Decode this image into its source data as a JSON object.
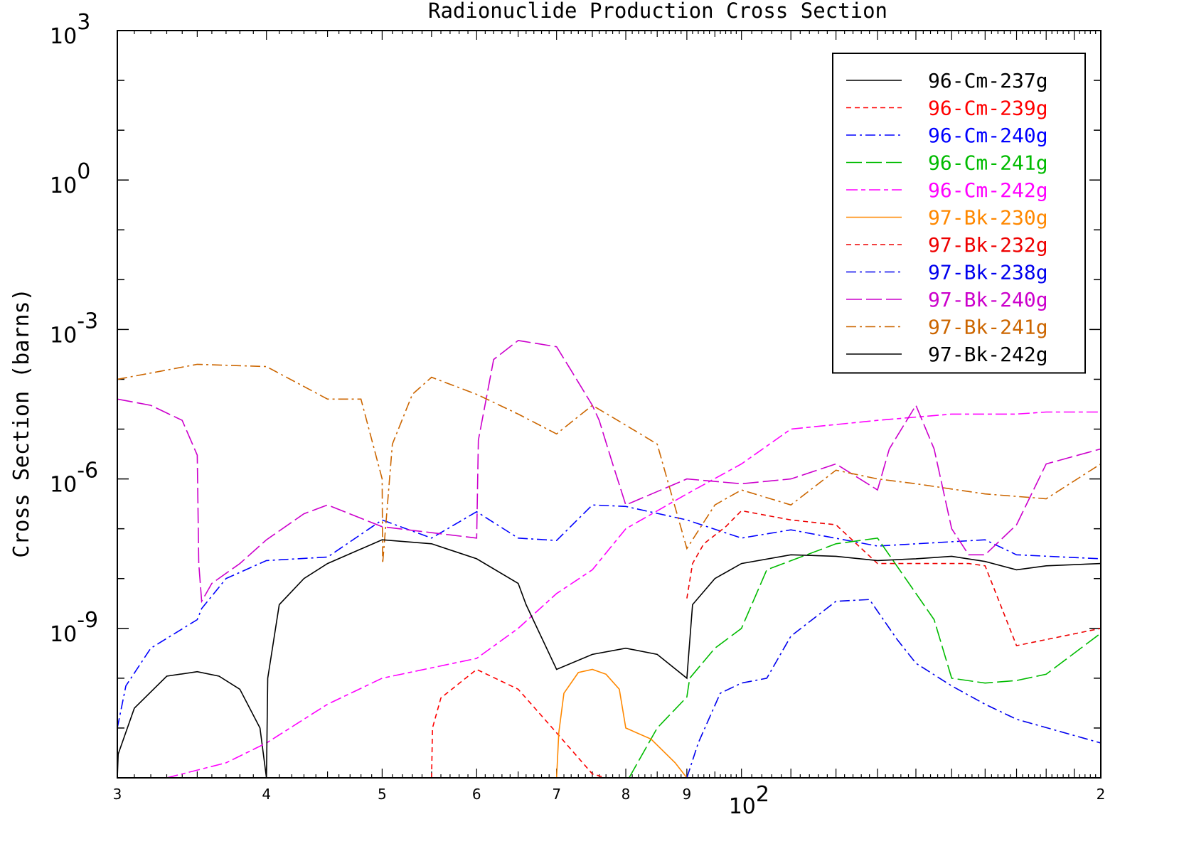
{
  "chart_data": {
    "type": "line",
    "title": "Radionuclide Production Cross Section",
    "xlabel": "",
    "ylabel": "Cross Section (barns)",
    "xscale": "log",
    "yscale": "log",
    "xlim": [
      30,
      200
    ],
    "ylim": [
      1e-12,
      1000
    ],
    "x_tick_labels": [
      {
        "x": 30,
        "label": "3"
      },
      {
        "x": 40,
        "label": "4"
      },
      {
        "x": 50,
        "label": "5"
      },
      {
        "x": 60,
        "label": "6"
      },
      {
        "x": 70,
        "label": "7"
      },
      {
        "x": 80,
        "label": "8"
      },
      {
        "x": 90,
        "label": "9"
      },
      {
        "x": 100,
        "label": "10",
        "sup": "2"
      },
      {
        "x": 200,
        "label": "2"
      }
    ],
    "y_tick_labels": [
      {
        "y": 1000,
        "label": "10",
        "sup": "3"
      },
      {
        "y": 1,
        "label": "10",
        "sup": "0"
      },
      {
        "y": 0.001,
        "label": "10",
        "sup": "-3"
      },
      {
        "y": 1e-06,
        "label": "10",
        "sup": "-6"
      },
      {
        "y": 1e-09,
        "label": "10",
        "sup": "-9"
      }
    ],
    "grid": false,
    "legend_position": "top-right",
    "series": [
      {
        "name": "96-Cm-237g",
        "color": "#000000",
        "dash": "solid",
        "points": [
          [
            30,
            1e-12
          ],
          [
            30.05,
            3e-12
          ],
          [
            31,
            2.5e-11
          ],
          [
            33,
            1.1e-10
          ],
          [
            35,
            1.35e-10
          ],
          [
            36.5,
            1.1e-10
          ],
          [
            38,
            6e-11
          ],
          [
            39.5,
            1e-11
          ],
          [
            40,
            1e-12
          ]
        ]
      },
      {
        "name": "96-Cm-239g",
        "color": "#ff0000",
        "dash": "short",
        "points": [
          [
            55,
            1e-12
          ],
          [
            55.1,
            1e-11
          ],
          [
            56,
            4e-11
          ],
          [
            60,
            1.5e-10
          ],
          [
            65,
            6e-11
          ],
          [
            70,
            8e-12
          ],
          [
            75,
            1.2e-12
          ],
          [
            77,
            1e-12
          ]
        ]
      },
      {
        "name": "96-Cm-240g",
        "color": "#0000ff",
        "dash": "dashdot",
        "points": [
          [
            30,
            1e-11
          ],
          [
            30.5,
            7e-11
          ],
          [
            32,
            4e-10
          ],
          [
            35,
            1.5e-09
          ],
          [
            35.3,
            2.5e-09
          ],
          [
            37,
            1e-08
          ],
          [
            40,
            2.3e-08
          ],
          [
            45,
            2.7e-08
          ],
          [
            50,
            1.5e-07
          ],
          [
            55,
            6.5e-08
          ],
          [
            60,
            2.2e-07
          ],
          [
            65,
            6.5e-08
          ],
          [
            70,
            5.8e-08
          ],
          [
            75,
            3e-07
          ],
          [
            80,
            2.8e-07
          ],
          [
            90,
            1.5e-07
          ],
          [
            100,
            6.5e-08
          ],
          [
            110,
            9.5e-08
          ],
          [
            130,
            4.5e-08
          ],
          [
            160,
            6e-08
          ],
          [
            170,
            3e-08
          ],
          [
            200,
            2.5e-08
          ]
        ]
      },
      {
        "name": "96-Cm-241g",
        "color": "#00bb00",
        "dash": "longdash",
        "points": [
          [
            80.5,
            1e-12
          ],
          [
            85,
            1e-11
          ],
          [
            90,
            4.2e-11
          ],
          [
            90.5,
            1e-10
          ],
          [
            95,
            4e-10
          ],
          [
            100,
            1e-09
          ],
          [
            105,
            1.5e-08
          ],
          [
            120,
            5e-08
          ],
          [
            130,
            6.5e-08
          ],
          [
            145,
            1.5e-09
          ],
          [
            150,
            1e-10
          ],
          [
            160,
            8e-11
          ],
          [
            170,
            9e-11
          ],
          [
            180,
            1.2e-10
          ],
          [
            200,
            8e-10
          ]
        ]
      },
      {
        "name": "96-Cm-242g",
        "color": "#ff00ff",
        "dash": "longshort",
        "points": [
          [
            33,
            1e-12
          ],
          [
            37,
            2e-12
          ],
          [
            40,
            5e-12
          ],
          [
            45,
            3e-11
          ],
          [
            50,
            1e-10
          ],
          [
            60,
            2.5e-10
          ],
          [
            65,
            1e-09
          ],
          [
            70,
            5e-09
          ],
          [
            75,
            1.5e-08
          ],
          [
            80,
            1e-07
          ],
          [
            90,
            5e-07
          ],
          [
            100,
            2e-06
          ],
          [
            110,
            1e-05
          ],
          [
            130,
            1.5e-05
          ],
          [
            150,
            2e-05
          ],
          [
            170,
            2e-05
          ],
          [
            180,
            2.2e-05
          ],
          [
            200,
            2.2e-05
          ]
        ]
      },
      {
        "name": "97-Bk-230g",
        "color": "#ff8800",
        "dash": "solid",
        "points": [
          [
            70,
            1e-12
          ],
          [
            70.3,
            8e-12
          ],
          [
            71,
            5e-11
          ],
          [
            73,
            1.3e-10
          ],
          [
            75,
            1.5e-10
          ],
          [
            77,
            1.2e-10
          ],
          [
            79,
            6e-11
          ],
          [
            80,
            1e-11
          ],
          [
            84,
            6e-12
          ],
          [
            88,
            2e-12
          ],
          [
            90,
            1e-12
          ]
        ]
      },
      {
        "name": "97-Bk-232g",
        "color": "#ee0000",
        "dash": "short",
        "points": [
          [
            90,
            4e-09
          ],
          [
            91,
            2e-08
          ],
          [
            93,
            5e-08
          ],
          [
            97,
            1.1e-07
          ],
          [
            100,
            2.3e-07
          ],
          [
            110,
            1.5e-07
          ],
          [
            120,
            1.2e-07
          ],
          [
            130,
            2e-08
          ],
          [
            140,
            2e-08
          ],
          [
            155,
            2e-08
          ],
          [
            160,
            1.8e-08
          ],
          [
            170,
            4.5e-10
          ],
          [
            200,
            1e-09
          ]
        ]
      },
      {
        "name": "97-Bk-238g",
        "color": "#0000ee",
        "dash": "dashdot",
        "points": [
          [
            90,
            1e-12
          ],
          [
            92,
            5e-12
          ],
          [
            96,
            5e-11
          ],
          [
            100,
            8e-11
          ],
          [
            105,
            1e-10
          ],
          [
            110,
            7e-10
          ],
          [
            120,
            3.5e-09
          ],
          [
            128,
            3.8e-09
          ],
          [
            135,
            6e-10
          ],
          [
            140,
            2e-10
          ],
          [
            150,
            7e-11
          ],
          [
            160,
            3e-11
          ],
          [
            170,
            1.5e-11
          ],
          [
            200,
            5e-12
          ]
        ]
      },
      {
        "name": "97-Bk-240g",
        "color": "#cc00cc",
        "dash": "longdash",
        "points": [
          [
            30,
            4e-05
          ],
          [
            32,
            3e-05
          ],
          [
            34,
            1.5e-05
          ],
          [
            35,
            3e-06
          ],
          [
            35.1,
            2e-08
          ],
          [
            35.3,
            3.5e-09
          ],
          [
            36,
            8e-09
          ],
          [
            38,
            2e-08
          ],
          [
            40,
            6e-08
          ],
          [
            43,
            2e-07
          ],
          [
            45,
            3e-07
          ],
          [
            50,
            1.1e-07
          ],
          [
            60,
            6.5e-08
          ],
          [
            60.2,
            6e-06
          ],
          [
            62,
            0.00025
          ],
          [
            65,
            0.0006
          ],
          [
            70,
            0.00045
          ],
          [
            72,
            0.00015
          ],
          [
            75,
            3e-05
          ],
          [
            76,
            1.5e-05
          ],
          [
            78,
            2e-06
          ],
          [
            80,
            3e-07
          ],
          [
            90,
            1e-06
          ],
          [
            100,
            8e-07
          ],
          [
            110,
            1e-06
          ],
          [
            120,
            2e-06
          ],
          [
            130,
            6e-07
          ],
          [
            133,
            4e-06
          ],
          [
            140,
            3e-05
          ],
          [
            145,
            4e-06
          ],
          [
            150,
            1e-07
          ],
          [
            155,
            3e-08
          ],
          [
            160,
            3e-08
          ],
          [
            170,
            1.2e-07
          ],
          [
            180,
            2e-06
          ],
          [
            200,
            4e-06
          ]
        ]
      },
      {
        "name": "97-Bk-241g",
        "color": "#cc6600",
        "dash": "dashdot",
        "points": [
          [
            30,
            0.0001
          ],
          [
            35,
            0.0002
          ],
          [
            40,
            0.00018
          ],
          [
            45,
            4e-05
          ],
          [
            48,
            4e-05
          ],
          [
            50,
            1e-06
          ],
          [
            50.05,
            2e-08
          ],
          [
            51,
            5e-06
          ],
          [
            53,
            5e-05
          ],
          [
            55,
            0.00011
          ],
          [
            60,
            5e-05
          ],
          [
            65,
            2e-05
          ],
          [
            70,
            8e-06
          ],
          [
            75,
            3e-05
          ],
          [
            80,
            1.2e-05
          ],
          [
            85,
            5e-06
          ],
          [
            90,
            4e-08
          ],
          [
            95,
            3e-07
          ],
          [
            100,
            6e-07
          ],
          [
            110,
            3e-07
          ],
          [
            120,
            1.5e-06
          ],
          [
            130,
            1e-06
          ],
          [
            140,
            8e-07
          ],
          [
            160,
            5e-07
          ],
          [
            180,
            4e-07
          ],
          [
            200,
            2e-06
          ]
        ]
      },
      {
        "name": "97-Bk-242g",
        "color": "#000000",
        "dash": "solid",
        "points": [
          [
            40,
            1e-12
          ],
          [
            40.1,
            1e-10
          ],
          [
            41,
            3e-09
          ],
          [
            43,
            1e-08
          ],
          [
            45,
            2e-08
          ],
          [
            50,
            6e-08
          ],
          [
            55,
            5e-08
          ],
          [
            60,
            2.5e-08
          ],
          [
            65,
            8e-09
          ],
          [
            66,
            3e-09
          ],
          [
            70,
            1.5e-10
          ],
          [
            75,
            3e-10
          ],
          [
            80,
            4e-10
          ],
          [
            85,
            3e-10
          ],
          [
            90,
            1e-10
          ],
          [
            91,
            3e-09
          ],
          [
            95,
            1e-08
          ],
          [
            100,
            2e-08
          ],
          [
            110,
            3e-08
          ],
          [
            120,
            2.8e-08
          ],
          [
            130,
            2.3e-08
          ],
          [
            140,
            2.5e-08
          ],
          [
            150,
            2.8e-08
          ],
          [
            160,
            2.2e-08
          ],
          [
            170,
            1.5e-08
          ],
          [
            180,
            1.8e-08
          ],
          [
            200,
            2e-08
          ]
        ]
      }
    ]
  }
}
